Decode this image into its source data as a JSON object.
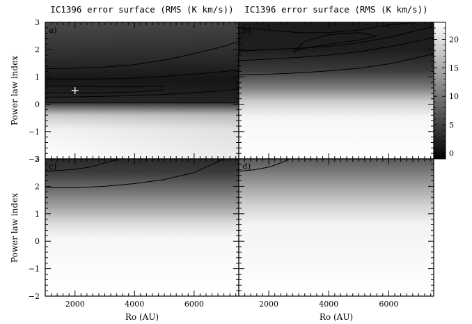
{
  "figure": {
    "titles": [
      "IC1396 error surface (RMS (K km/s))",
      "IC1396 error surface (RMS (K km/s))"
    ],
    "ylabel": "Power law index",
    "xlabel": "Ro (AU)"
  },
  "chart_data": [
    {
      "type": "heatmap",
      "panel": "a)",
      "title": "IC1396 error surface (RMS (K km/s))",
      "ylabel": "Power law index",
      "xlabel": "",
      "xlim": [
        1000,
        7500
      ],
      "ylim": [
        -2,
        3
      ],
      "xticks": [
        2000,
        4000,
        6000
      ],
      "yticks": [
        -2,
        -1,
        0,
        1,
        2,
        3
      ],
      "marker": {
        "x": 2000,
        "y": 0.5,
        "symbol": "+"
      },
      "dark_band_center": [
        0.55,
        0.6
      ],
      "contours": [
        {
          "x": [
            1000,
            2000,
            3000,
            4000,
            5000
          ],
          "y": [
            0.68,
            0.66,
            0.64,
            0.64,
            0.66
          ]
        },
        {
          "x": [
            1000,
            2000,
            3000,
            4000,
            5000
          ],
          "y": [
            0.42,
            0.41,
            0.42,
            0.45,
            0.53
          ]
        },
        {
          "x": [
            1000,
            2000,
            3000,
            4000,
            5000,
            6000,
            7000,
            7500
          ],
          "y": [
            0.92,
            0.92,
            0.93,
            0.96,
            1.02,
            1.1,
            1.2,
            1.25
          ]
        },
        {
          "x": [
            1000,
            2000,
            3000,
            4000,
            5000,
            6000,
            7000,
            7500
          ],
          "y": [
            0.26,
            0.27,
            0.29,
            0.32,
            0.36,
            0.42,
            0.5,
            0.55
          ]
        },
        {
          "x": [
            1000,
            2000,
            3000,
            4000,
            5000,
            6000,
            7000,
            7500
          ],
          "y": [
            1.3,
            1.32,
            1.36,
            1.45,
            1.62,
            1.85,
            2.12,
            2.3
          ]
        },
        {
          "x": [
            1000,
            3000,
            5000,
            7500
          ],
          "y": [
            0.05,
            0.05,
            0.05,
            0.05
          ]
        }
      ]
    },
    {
      "type": "heatmap",
      "panel": "b)",
      "title": "IC1396 error surface (RMS (K km/s))",
      "ylabel": "",
      "xlabel": "",
      "xlim": [
        1000,
        7500
      ],
      "ylim": [
        -2,
        3
      ],
      "xticks": [
        2000,
        4000,
        6000
      ],
      "dark_band_center": [
        2.2,
        2.75
      ],
      "colorbar": {
        "min": -1,
        "max": 23,
        "ticks": [
          0,
          5,
          10,
          15,
          20
        ],
        "colormap": "black-to-white"
      },
      "contours": [
        {
          "x": [
            2800,
            3200,
            4000,
            5000,
            5600,
            5000,
            4000,
            3200,
            2800
          ],
          "y": [
            1.9,
            2.05,
            2.2,
            2.35,
            2.5,
            2.62,
            2.55,
            2.3,
            1.9
          ]
        },
        {
          "x": [
            1000,
            2000,
            3000,
            4000,
            5000,
            6000,
            7000,
            7500
          ],
          "y": [
            2.8,
            2.72,
            2.62,
            2.62,
            2.72,
            2.9,
            3.0,
            3.0
          ]
        },
        {
          "x": [
            1000,
            2000,
            3000,
            4000,
            5000,
            6000,
            7000,
            7500
          ],
          "y": [
            1.95,
            2.0,
            2.05,
            2.12,
            2.25,
            2.45,
            2.72,
            2.85
          ]
        },
        {
          "x": [
            1000,
            2000,
            3000,
            4000,
            5000,
            6000,
            7000,
            7500
          ],
          "y": [
            1.6,
            1.65,
            1.72,
            1.8,
            1.92,
            2.1,
            2.32,
            2.45
          ]
        },
        {
          "x": [
            1000,
            2000,
            3000,
            4000,
            5000,
            6000,
            7000,
            7500
          ],
          "y": [
            1.08,
            1.1,
            1.15,
            1.22,
            1.32,
            1.48,
            1.72,
            1.85
          ]
        }
      ]
    },
    {
      "type": "heatmap",
      "panel": "c)",
      "title": "",
      "ylabel": "Power law index",
      "xlabel": "Ro (AU)",
      "xlim": [
        1000,
        7500
      ],
      "ylim": [
        -2,
        3
      ],
      "xticks": [
        2000,
        4000,
        6000
      ],
      "yticks": [
        -2,
        -1,
        0,
        1,
        2,
        3
      ],
      "contours": [
        {
          "x": [
            1000,
            1500,
            2000,
            2500,
            3000,
            3500
          ],
          "y": [
            2.55,
            2.58,
            2.62,
            2.7,
            2.85,
            3.0
          ]
        },
        {
          "x": [
            1000,
            2000,
            3000,
            4000,
            5000,
            6000,
            6600,
            7000
          ],
          "y": [
            1.95,
            1.95,
            2.0,
            2.1,
            2.25,
            2.5,
            2.8,
            3.0
          ]
        }
      ]
    },
    {
      "type": "heatmap",
      "panel": "d)",
      "title": "",
      "ylabel": "",
      "xlabel": "Ro (AU)",
      "xlim": [
        1000,
        7500
      ],
      "ylim": [
        -2,
        3
      ],
      "xticks": [
        2000,
        4000,
        6000
      ],
      "contours": [
        {
          "x": [
            1000,
            1500,
            2000,
            2400,
            2700
          ],
          "y": [
            2.55,
            2.6,
            2.7,
            2.85,
            3.0
          ]
        }
      ]
    }
  ]
}
